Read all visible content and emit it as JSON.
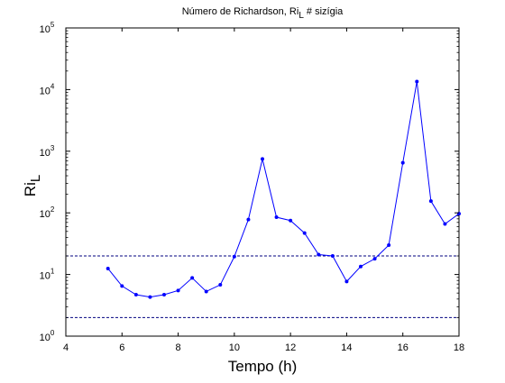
{
  "chart_data": {
    "type": "line",
    "title": "Número de Richardson, Ri",
    "title_subscript": "L",
    "title_suffix": " # sizígia",
    "xlabel": "Tempo (h)",
    "ylabel": "Ri",
    "ylabel_subscript": "L",
    "xlim": [
      4,
      18
    ],
    "ylim": [
      1,
      100000
    ],
    "y_scale": "log",
    "grid": false,
    "legend": "none",
    "x_ticks": [
      4,
      6,
      8,
      10,
      12,
      14,
      16,
      18
    ],
    "x_tick_labels": [
      "4",
      "6",
      "8",
      "10",
      "12",
      "14",
      "16",
      "18"
    ],
    "y_ticks": [
      1,
      10,
      100,
      1000,
      10000,
      100000
    ],
    "y_tick_base": "10",
    "y_tick_exponents": [
      "0",
      "1",
      "2",
      "3",
      "4",
      "5"
    ],
    "series": [
      {
        "color": "#0000ff",
        "marker": "dot",
        "x": [
          5.5,
          6.0,
          6.5,
          7.0,
          7.5,
          8.0,
          8.5,
          9.0,
          9.5,
          10.0,
          10.5,
          11.0,
          11.5,
          12.0,
          12.5,
          13.0,
          13.5,
          14.0,
          14.5,
          15.0,
          15.5,
          16.0,
          16.5,
          17.0,
          17.5,
          18.0
        ],
        "y": [
          12.5,
          6.5,
          4.7,
          4.3,
          4.7,
          5.5,
          8.8,
          5.3,
          6.8,
          19.5,
          78,
          750,
          85,
          75,
          47,
          21,
          20,
          7.7,
          13.5,
          18,
          30,
          650,
          13500,
          155,
          66,
          97
        ]
      }
    ],
    "reference_lines": [
      {
        "y": 20,
        "color": "#000080",
        "style": "dashed"
      },
      {
        "y": 2,
        "color": "#000080",
        "style": "dashed"
      }
    ]
  }
}
